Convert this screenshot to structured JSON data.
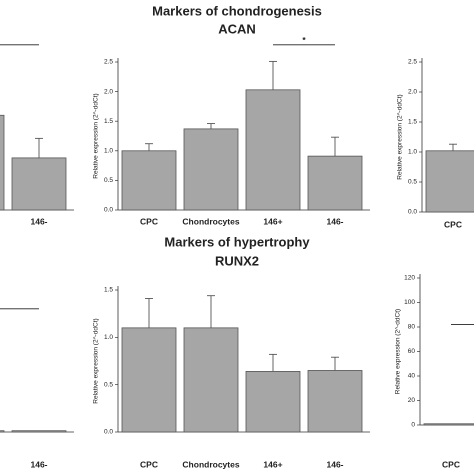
{
  "chart_data": [
    {
      "type": "bar",
      "categories": [
        null,
        "146-"
      ],
      "values": [
        1.6,
        0.88
      ],
      "errors": [
        null,
        0.33
      ],
      "ylim": [
        0,
        2.5
      ],
      "color": "#a6a6a6",
      "brackets": [
        {
          "categories": [
            0,
            1
          ],
          "y": 2.79
        }
      ]
    },
    {
      "type": "bar",
      "title": "Markers of chondrogenesis",
      "subtitle": "ACAN",
      "y_label": "Relative expression (2^-ddCt)",
      "categories": [
        "CPC",
        "Chondrocytes",
        "146+",
        "146-"
      ],
      "values": [
        1.0,
        1.37,
        2.03,
        0.91
      ],
      "errors": [
        0.12,
        0.09,
        0.48,
        0.32
      ],
      "ylim": [
        0,
        2.5
      ],
      "yticks": [
        {
          "value": 0,
          "label": "0.0"
        },
        {
          "value": 0.5,
          "label": "0.5"
        },
        {
          "value": 1,
          "label": "1.0"
        },
        {
          "value": 1.5,
          "label": "1.5"
        },
        {
          "value": 2,
          "label": "2.0"
        },
        {
          "value": 2.5,
          "label": "2.5"
        }
      ],
      "color": "#a6a6a6",
      "brackets": [
        {
          "categories": [
            2,
            3
          ],
          "y": 2.79,
          "text": "*"
        }
      ]
    },
    {
      "type": "bar",
      "y_label": "Relative expression (2^-ddCt)",
      "categories": [
        "CPC"
      ],
      "values": [
        1.02
      ],
      "errors": [
        0.11
      ],
      "ylim": [
        0,
        2.5
      ],
      "yticks": [
        {
          "value": 0,
          "label": "0.0"
        },
        {
          "value": 0.5,
          "label": "0.5"
        },
        {
          "value": 1,
          "label": "1.0"
        },
        {
          "value": 1.5,
          "label": "1.5"
        },
        {
          "value": 2,
          "label": "2.0"
        },
        {
          "value": 2.5,
          "label": "2.5"
        }
      ],
      "color": "#a6a6a6"
    },
    {
      "type": "bar",
      "categories": [
        null,
        "146-"
      ],
      "values": [
        1,
        1
      ],
      "ylim": [
        0,
        120
      ],
      "color": "#a6a6a6",
      "brackets": [
        {
          "categories": [
            0,
            1
          ],
          "y": 96
        }
      ]
    },
    {
      "type": "bar",
      "title": "Markers of hypertrophy",
      "subtitle": "RUNX2",
      "y_label": "Relative expression (2^-ddCt)",
      "categories": [
        "CPC",
        "Chondrocytes",
        "146+",
        "146-"
      ],
      "values": [
        1.1,
        1.1,
        0.64,
        0.65
      ],
      "errors": [
        0.31,
        0.34,
        0.18,
        0.14
      ],
      "ylim": [
        0,
        1.5
      ],
      "yticks": [
        {
          "value": 0,
          "label": "0.0"
        },
        {
          "value": 0.5,
          "label": "0.5"
        },
        {
          "value": 1,
          "label": "1.0"
        },
        {
          "value": 1.5,
          "label": "1.5"
        }
      ],
      "color": "#a6a6a6"
    },
    {
      "type": "bar",
      "y_label": "Relative expression (2^-ddCt)",
      "categories": [
        "CPC"
      ],
      "values": [
        1
      ],
      "ylim": [
        0,
        120
      ],
      "yticks": [
        0,
        20,
        40,
        60,
        80,
        100,
        120
      ],
      "color": "#a6a6a6",
      "brackets": [
        {
          "categories": [
            0,
            2
          ],
          "y": 82
        }
      ]
    }
  ]
}
